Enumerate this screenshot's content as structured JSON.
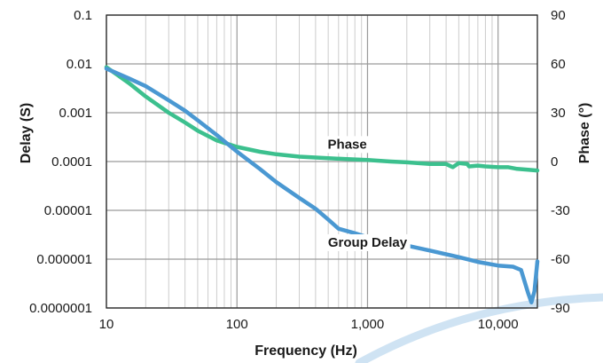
{
  "chart_data": {
    "type": "line",
    "xlabel": "Frequency (Hz)",
    "ylabel_left": "Delay (S)",
    "ylabel_right": "Phase (°)",
    "x_scale": "log",
    "xlim": [
      10,
      20000
    ],
    "x_ticks": [
      {
        "value": 10,
        "label": "10"
      },
      {
        "value": 100,
        "label": "100"
      },
      {
        "value": 1000,
        "label": "1,000"
      },
      {
        "value": 10000,
        "label": "10,000"
      }
    ],
    "y_left_scale": "log",
    "y_left_lim": [
      1e-07,
      0.1
    ],
    "y_left_ticks": [
      {
        "value": 0.1,
        "label": "0.1"
      },
      {
        "value": 0.01,
        "label": "0.01"
      },
      {
        "value": 0.001,
        "label": "0.001"
      },
      {
        "value": 0.0001,
        "label": "0.0001"
      },
      {
        "value": 1e-05,
        "label": "0.00001"
      },
      {
        "value": 1e-06,
        "label": "0.000001"
      },
      {
        "value": 1e-07,
        "label": "0.0000001"
      }
    ],
    "y_right_lim": [
      -90,
      90
    ],
    "y_right_ticks": [
      {
        "value": 90,
        "label": "90"
      },
      {
        "value": 60,
        "label": "60"
      },
      {
        "value": 30,
        "label": "30"
      },
      {
        "value": 0,
        "label": "0"
      },
      {
        "value": -30,
        "label": "-30"
      },
      {
        "value": -60,
        "label": "-60"
      },
      {
        "value": -90,
        "label": "-90"
      }
    ],
    "grid": true,
    "series": [
      {
        "name": "Phase",
        "axis": "right",
        "color": "#3cc08e",
        "points": [
          [
            10,
            58
          ],
          [
            15,
            48
          ],
          [
            20,
            40
          ],
          [
            30,
            30
          ],
          [
            40,
            24
          ],
          [
            50,
            19
          ],
          [
            70,
            13
          ],
          [
            100,
            9
          ],
          [
            150,
            6
          ],
          [
            200,
            4.5
          ],
          [
            300,
            3
          ],
          [
            500,
            2
          ],
          [
            700,
            1.5
          ],
          [
            1000,
            1
          ],
          [
            1500,
            0
          ],
          [
            2000,
            -0.5
          ],
          [
            3000,
            -1.5
          ],
          [
            4000,
            -1.5
          ],
          [
            4500,
            -3.5
          ],
          [
            5000,
            -1
          ],
          [
            5800,
            -1.5
          ],
          [
            6000,
            -3
          ],
          [
            7000,
            -2.5
          ],
          [
            8000,
            -3
          ],
          [
            10000,
            -3.5
          ],
          [
            12000,
            -3.5
          ],
          [
            14000,
            -4.5
          ],
          [
            17000,
            -5
          ],
          [
            20000,
            -5.5
          ]
        ]
      },
      {
        "name": "Group Delay",
        "axis": "left",
        "color": "#4a98d2",
        "points": [
          [
            10,
            0.008
          ],
          [
            15,
            0.005
          ],
          [
            20,
            0.0035
          ],
          [
            30,
            0.0018
          ],
          [
            40,
            0.0011
          ],
          [
            50,
            0.0007
          ],
          [
            70,
            0.00035
          ],
          [
            100,
            0.00016
          ],
          [
            150,
            7e-05
          ],
          [
            200,
            3.8e-05
          ],
          [
            300,
            1.8e-05
          ],
          [
            400,
            1.08e-05
          ],
          [
            500,
            6.5e-06
          ],
          [
            600,
            4.2e-06
          ],
          [
            800,
            3.4e-06
          ],
          [
            1000,
            2.8e-06
          ],
          [
            1500,
            2.3e-06
          ],
          [
            2000,
            1.9e-06
          ],
          [
            3000,
            1.5e-06
          ],
          [
            5000,
            1.1e-06
          ],
          [
            7000,
            8.8e-07
          ],
          [
            10000,
            7.4e-07
          ],
          [
            13000,
            7e-07
          ],
          [
            15000,
            6e-07
          ],
          [
            17000,
            2e-07
          ],
          [
            18000,
            1.3e-07
          ],
          [
            19000,
            2.2e-07
          ],
          [
            20000,
            9e-07
          ]
        ]
      }
    ],
    "annotations": [
      {
        "text": "Phase",
        "x": 700,
        "y_right": 8
      },
      {
        "text": "Group Delay",
        "x": 1000,
        "y_left": 1.8e-06
      }
    ]
  }
}
